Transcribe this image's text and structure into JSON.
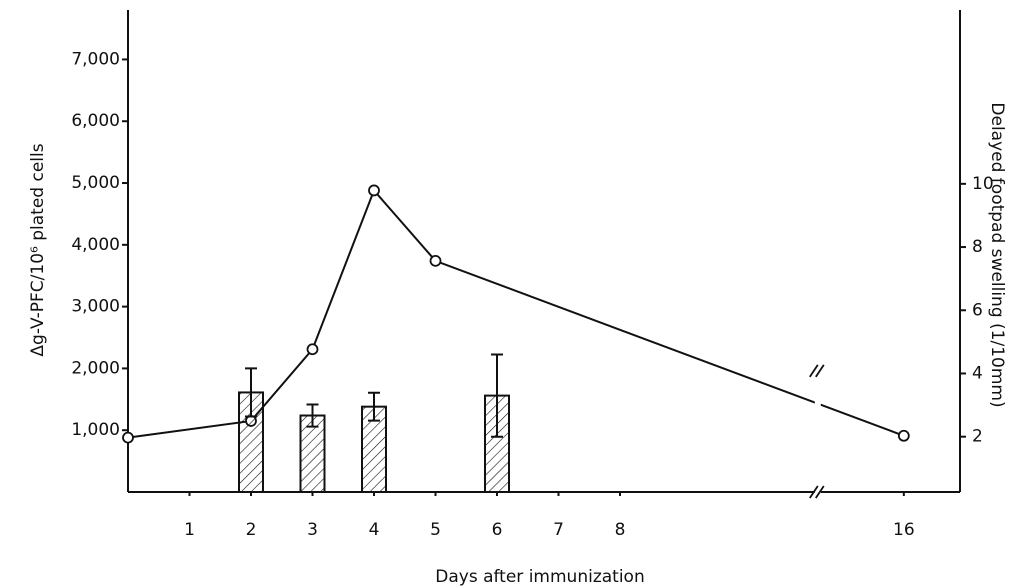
{
  "chart_data": {
    "type": "line_bar",
    "x_label": "Days after immunization",
    "y_label": "Δg-V-PFC/10⁶ plated cells",
    "y2_label": "Delayed footpad swelling (1/10mm)",
    "xlim": [
      0,
      16.4
    ],
    "x_break": [
      11.2,
      14.65
    ],
    "xticks": [
      1,
      2,
      3,
      4,
      5,
      6,
      7,
      8,
      16
    ],
    "ylim": [
      0,
      7800
    ],
    "yticks": [
      {
        "value": 1000,
        "label": "1,000"
      },
      {
        "value": 2000,
        "label": "2,000"
      },
      {
        "value": 3000,
        "label": "3,000"
      },
      {
        "value": 4000,
        "label": "4,000"
      },
      {
        "value": 5000,
        "label": "5,000"
      },
      {
        "value": 6000,
        "label": "6,000"
      },
      {
        "value": 7000,
        "label": "7,000"
      }
    ],
    "y2lim": [
      0.25,
      15.5
    ],
    "y2ticks": [
      2,
      4,
      6,
      8,
      10
    ],
    "series": [
      {
        "type": "line",
        "color": "#111111",
        "x": [
          0,
          2,
          3,
          4,
          5,
          16
        ],
        "values": [
          880,
          1150,
          2310,
          4880,
          3740,
          910
        ]
      },
      {
        "type": "bar",
        "axis": "y2",
        "color": "#111111",
        "x": [
          2,
          3,
          4,
          6
        ],
        "values": [
          3.4,
          2.67,
          2.95,
          3.3
        ],
        "errors": [
          0.76,
          0.35,
          0.44,
          1.3
        ]
      }
    ]
  }
}
